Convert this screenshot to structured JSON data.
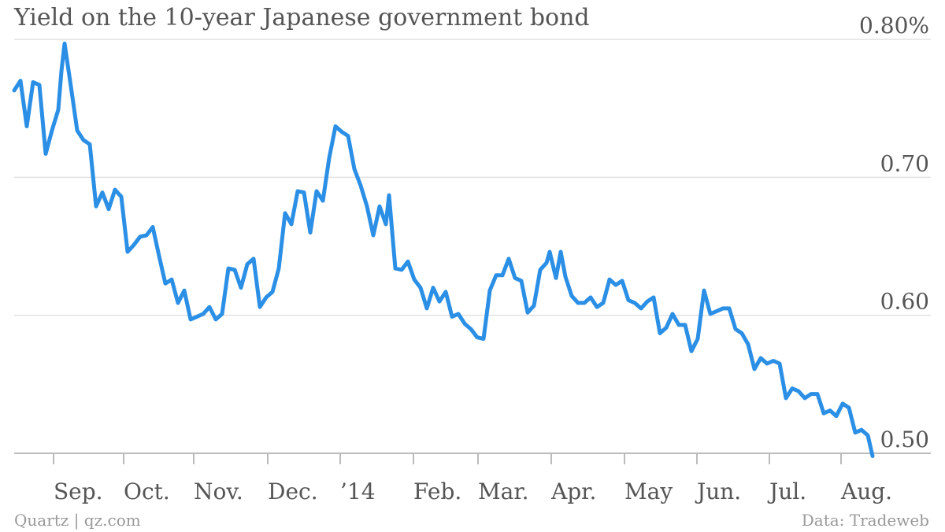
{
  "chart_data": {
    "type": "line",
    "title": "Yield on the 10-year Japanese government bond",
    "source": "Data: Tradeweb",
    "credit": "Quartz | qz.com",
    "color": "#2b8fe6",
    "grid": true,
    "ylim": [
      0.5,
      0.8
    ],
    "yticks": [
      {
        "value": 0.5,
        "label": "0.50"
      },
      {
        "value": 0.6,
        "label": "0.60"
      },
      {
        "value": 0.7,
        "label": "0.70"
      },
      {
        "value": 0.8,
        "label": "0.80%"
      }
    ],
    "xlim": [
      0,
      1092
    ],
    "xticks": [
      {
        "value": 50,
        "label": "Sep."
      },
      {
        "value": 139,
        "label": "Oct."
      },
      {
        "value": 228,
        "label": "Nov."
      },
      {
        "value": 322,
        "label": "Dec."
      },
      {
        "value": 414,
        "label": "’14"
      },
      {
        "value": 507,
        "label": "Feb."
      },
      {
        "value": 589,
        "label": "Mar."
      },
      {
        "value": 682,
        "label": "Apr."
      },
      {
        "value": 775,
        "label": "May"
      },
      {
        "value": 867,
        "label": "Jun."
      },
      {
        "value": 959,
        "label": "Jul."
      },
      {
        "value": 1050,
        "label": "Aug."
      }
    ],
    "x": [
      0,
      8,
      16,
      24,
      32,
      40,
      48,
      56,
      60,
      64,
      72,
      80,
      88,
      96,
      104,
      112,
      120,
      128,
      136,
      144,
      152,
      160,
      168,
      176,
      184,
      192,
      200,
      208,
      216,
      224,
      232,
      240,
      248,
      256,
      264,
      272,
      280,
      288,
      296,
      304,
      312,
      320,
      328,
      336,
      344,
      352,
      360,
      368,
      376,
      384,
      392,
      400,
      408,
      416,
      424,
      432,
      440,
      448,
      456,
      464,
      472,
      476,
      484,
      492,
      500,
      508,
      516,
      524,
      532,
      540,
      548,
      556,
      564,
      572,
      580,
      588,
      596,
      604,
      612,
      620,
      628,
      636,
      644,
      652,
      660,
      668,
      676,
      680,
      688,
      694,
      700,
      708,
      716,
      724,
      732,
      740,
      748,
      756,
      764,
      772,
      780,
      788,
      796,
      804,
      812,
      820,
      828,
      836,
      844,
      852,
      860,
      868,
      876,
      884,
      892,
      900,
      908,
      916,
      924,
      932,
      940,
      948,
      956,
      964,
      972,
      980,
      988,
      996,
      1004,
      1012,
      1020,
      1028,
      1036,
      1044,
      1052,
      1060,
      1068,
      1076,
      1084,
      1090
    ],
    "values": [
      0.763,
      0.77,
      0.737,
      0.769,
      0.767,
      0.717,
      0.734,
      0.749,
      0.777,
      0.797,
      0.766,
      0.734,
      0.727,
      0.724,
      0.679,
      0.689,
      0.677,
      0.691,
      0.686,
      0.646,
      0.651,
      0.657,
      0.658,
      0.664,
      0.643,
      0.623,
      0.626,
      0.609,
      0.618,
      0.597,
      0.599,
      0.601,
      0.606,
      0.597,
      0.601,
      0.634,
      0.633,
      0.62,
      0.637,
      0.641,
      0.606,
      0.613,
      0.617,
      0.634,
      0.674,
      0.666,
      0.69,
      0.689,
      0.66,
      0.69,
      0.683,
      0.714,
      0.737,
      0.733,
      0.73,
      0.706,
      0.694,
      0.679,
      0.658,
      0.679,
      0.666,
      0.687,
      0.634,
      0.633,
      0.639,
      0.626,
      0.62,
      0.605,
      0.62,
      0.61,
      0.617,
      0.599,
      0.601,
      0.594,
      0.59,
      0.584,
      0.583,
      0.618,
      0.629,
      0.629,
      0.641,
      0.627,
      0.625,
      0.602,
      0.607,
      0.633,
      0.638,
      0.646,
      0.627,
      0.646,
      0.628,
      0.614,
      0.609,
      0.609,
      0.613,
      0.606,
      0.609,
      0.626,
      0.622,
      0.625,
      0.611,
      0.609,
      0.605,
      0.61,
      0.613,
      0.587,
      0.591,
      0.601,
      0.593,
      0.593,
      0.574,
      0.583,
      0.618,
      0.601,
      0.603,
      0.605,
      0.605,
      0.59,
      0.587,
      0.579,
      0.561,
      0.569,
      0.565,
      0.567,
      0.565,
      0.54,
      0.547,
      0.545,
      0.54,
      0.543,
      0.543,
      0.529,
      0.531,
      0.527,
      0.536,
      0.533,
      0.515,
      0.517,
      0.513,
      0.498
    ]
  }
}
